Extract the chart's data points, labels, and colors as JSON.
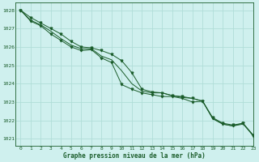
{
  "title": "Graphe pression niveau de la mer (hPa)",
  "bg_color": "#cff0ee",
  "grid_color": "#b0ddd8",
  "line_color": "#1a5c2a",
  "xlim": [
    -0.5,
    23
  ],
  "ylim": [
    1020.6,
    1028.4
  ],
  "yticks": [
    1021,
    1022,
    1023,
    1024,
    1025,
    1026,
    1027,
    1028
  ],
  "xticks": [
    0,
    1,
    2,
    3,
    4,
    5,
    6,
    7,
    8,
    9,
    10,
    11,
    12,
    13,
    14,
    15,
    16,
    17,
    18,
    19,
    20,
    21,
    22,
    23
  ],
  "series": [
    [
      1028.0,
      1027.6,
      1027.3,
      1027.0,
      1026.7,
      1026.3,
      1026.0,
      1025.95,
      1025.8,
      1025.6,
      1025.25,
      1024.6,
      1023.7,
      1023.55,
      1023.5,
      1023.35,
      1023.3,
      1023.2,
      1023.05,
      1022.15,
      1021.85,
      1021.75,
      1021.85,
      1021.2
    ],
    [
      1028.0,
      1027.45,
      1027.2,
      1026.85,
      1026.45,
      1026.1,
      1025.9,
      1025.9,
      1025.5,
      1025.3,
      1024.7,
      1024.0,
      1023.6,
      1023.5,
      1023.5,
      1023.35,
      1023.25,
      1023.2,
      1023.05,
      1022.1,
      1021.8,
      1021.7,
      1021.8,
      1021.2
    ],
    [
      1028.0,
      1027.4,
      1027.15,
      1026.7,
      1026.35,
      1026.0,
      1025.8,
      1025.85,
      1025.4,
      1025.15,
      1023.95,
      1023.7,
      1023.5,
      1023.4,
      1023.3,
      1023.3,
      1023.2,
      1023.0,
      1023.05,
      1022.1,
      1021.8,
      1021.7,
      1021.85,
      1021.15
    ]
  ]
}
